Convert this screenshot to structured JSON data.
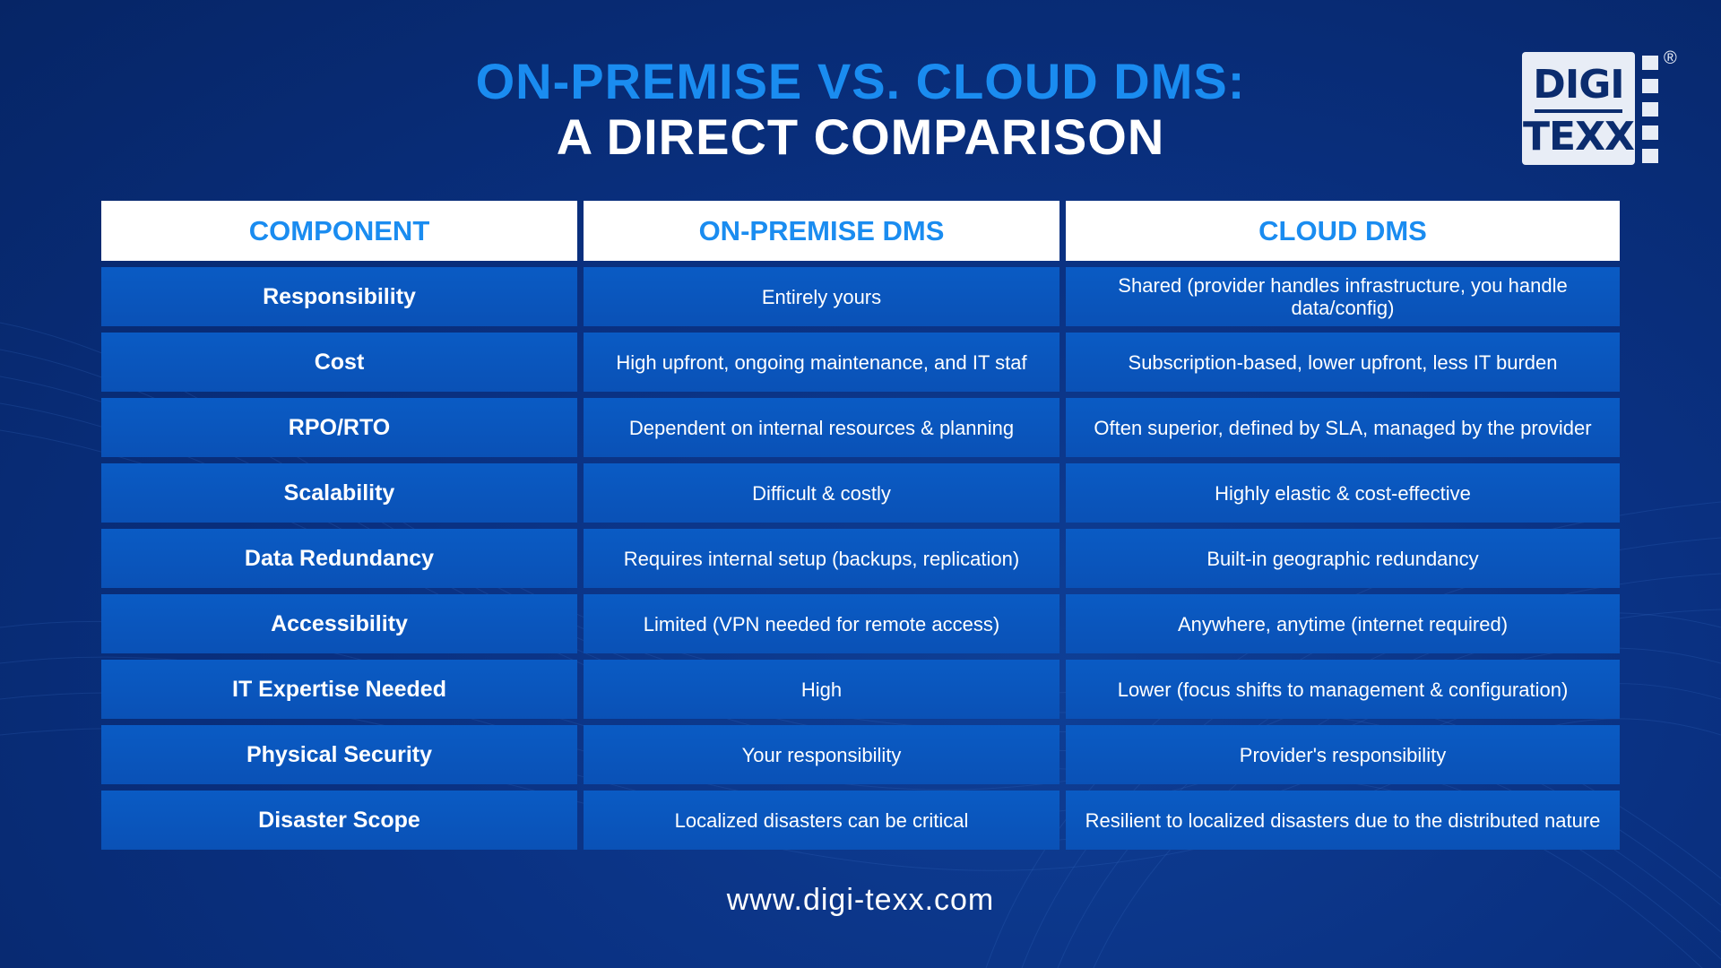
{
  "title": {
    "line1": "ON-PREMISE VS. CLOUD DMS:",
    "line2": "A DIRECT COMPARISON"
  },
  "logo": {
    "line1": "DIGI",
    "line2": "TEXX",
    "registered": "®"
  },
  "colors": {
    "accent": "#1a8cf0",
    "background": "#0a3182",
    "cell": "#0a56bd",
    "header_bg": "#ffffff"
  },
  "table": {
    "headers": [
      "COMPONENT",
      "ON-PREMISE DMS",
      "CLOUD DMS"
    ],
    "rows": [
      [
        "Responsibility",
        "Entirely yours",
        "Shared (provider handles infrastructure, you handle data/config)"
      ],
      [
        "Cost",
        "High upfront, ongoing maintenance, and IT staf",
        "Subscription-based, lower upfront, less IT burden"
      ],
      [
        "RPO/RTO",
        "Dependent on internal resources & planning",
        "Often superior, defined by SLA, managed by the provider"
      ],
      [
        "Scalability",
        "Difficult & costly",
        "Highly elastic & cost-effective"
      ],
      [
        "Data Redundancy",
        "Requires internal setup (backups, replication)",
        "Built-in geographic redundancy"
      ],
      [
        "Accessibility",
        "Limited (VPN needed for remote access)",
        "Anywhere, anytime (internet required)"
      ],
      [
        "IT Expertise Needed",
        "High",
        "Lower (focus shifts to management & configuration)"
      ],
      [
        "Physical Security",
        "Your responsibility",
        "Provider's responsibility"
      ],
      [
        "Disaster Scope",
        "Localized disasters can be critical",
        "Resilient to localized disasters due to the distributed nature"
      ]
    ]
  },
  "footer": {
    "url": "www.digi-texx.com"
  }
}
